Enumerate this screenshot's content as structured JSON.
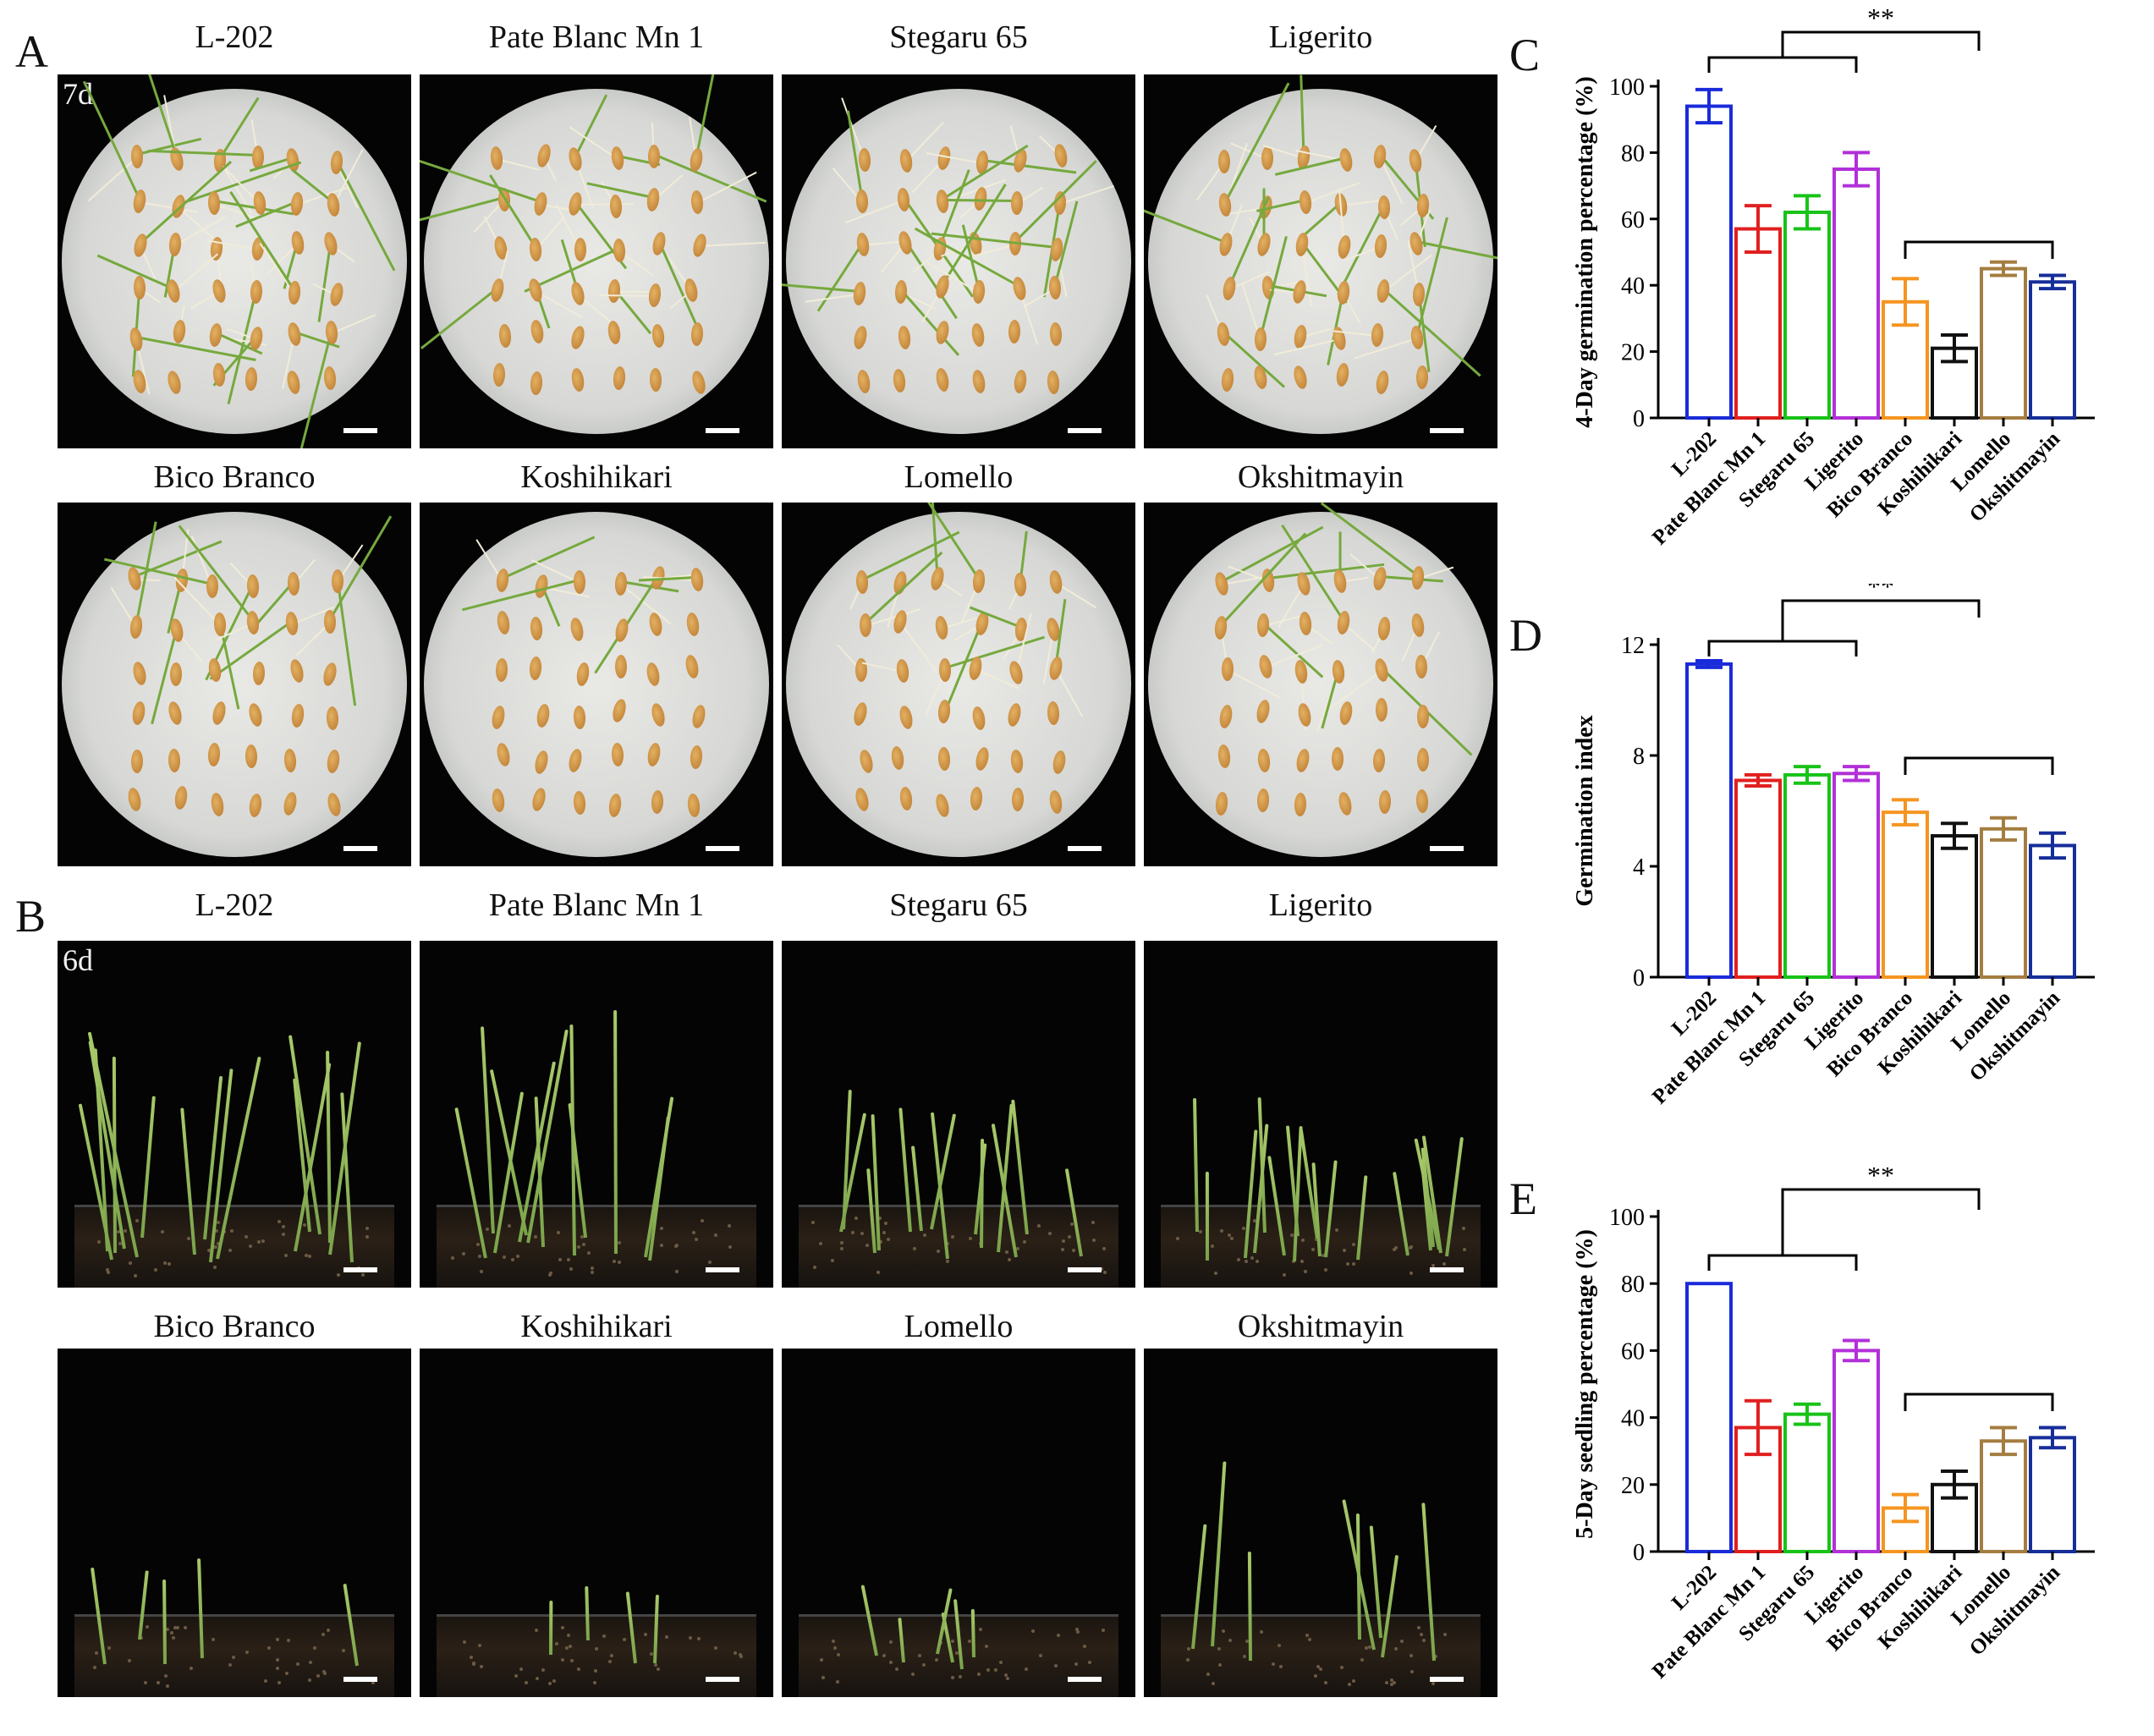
{
  "panels": {
    "A": {
      "letter": "A",
      "day": "7d",
      "scale_bar": "scale bar"
    },
    "B": {
      "letter": "B",
      "day": "6d",
      "scale_bar": "scale bar"
    },
    "C": {
      "letter": "C"
    },
    "D": {
      "letter": "D"
    },
    "E": {
      "letter": "E"
    }
  },
  "varieties": [
    "L-202",
    "Pate Blanc Mn 1",
    "Stegaru 65",
    "Ligerito",
    "Bico Branco",
    "Koshihikari",
    "Lomello",
    "Okshitmayin"
  ],
  "colors": [
    "#1a2bd9",
    "#e0201f",
    "#18c318",
    "#b230d8",
    "#f59520",
    "#111111",
    "#a47d40",
    "#162e99"
  ],
  "significance": "**",
  "chart_data": [
    {
      "panel": "C",
      "type": "bar",
      "ylabel": "4-Day germination percentage (%)",
      "categories": [
        "L-202",
        "Pate Blanc Mn 1",
        "Stegaru 65",
        "Ligerito",
        "Bico Branco",
        "Koshihikari",
        "Lomello",
        "Okshitmayin"
      ],
      "values": [
        94,
        57,
        62,
        75,
        35,
        21,
        45,
        41
      ],
      "errors": [
        5,
        7,
        5,
        5,
        7,
        4,
        2,
        2
      ],
      "ylim": [
        0,
        100
      ],
      "yticks": [
        "0",
        "20",
        "40",
        "60",
        "80",
        "100"
      ],
      "significance": "**"
    },
    {
      "panel": "D",
      "type": "bar",
      "ylabel": "Germination index",
      "categories": [
        "L-202",
        "Pate Blanc Mn 1",
        "Stegaru 65",
        "Ligerito",
        "Bico Branco",
        "Koshihikari",
        "Lomello",
        "Okshitmayin"
      ],
      "values": [
        11.3,
        7.1,
        7.3,
        7.35,
        5.95,
        5.1,
        5.35,
        4.75
      ],
      "errors": [
        0.12,
        0.2,
        0.3,
        0.25,
        0.45,
        0.45,
        0.4,
        0.45
      ],
      "ylim": [
        0,
        12
      ],
      "yticks": [
        "0",
        "4",
        "8",
        "12"
      ],
      "significance": "**"
    },
    {
      "panel": "E",
      "type": "bar",
      "ylabel": "5-Day seedling percentage (%)",
      "categories": [
        "L-202",
        "Pate Blanc Mn 1",
        "Stegaru 65",
        "Ligerito",
        "Bico Branco",
        "Koshihikari",
        "Lomello",
        "Okshitmayin"
      ],
      "values": [
        80,
        37,
        41,
        60,
        13,
        20,
        33,
        34
      ],
      "errors": [
        0,
        8,
        3,
        3,
        4,
        4,
        4,
        3
      ],
      "ylim": [
        0,
        100
      ],
      "yticks": [
        "0",
        "20",
        "40",
        "60",
        "80",
        "100"
      ],
      "significance": "**"
    }
  ]
}
